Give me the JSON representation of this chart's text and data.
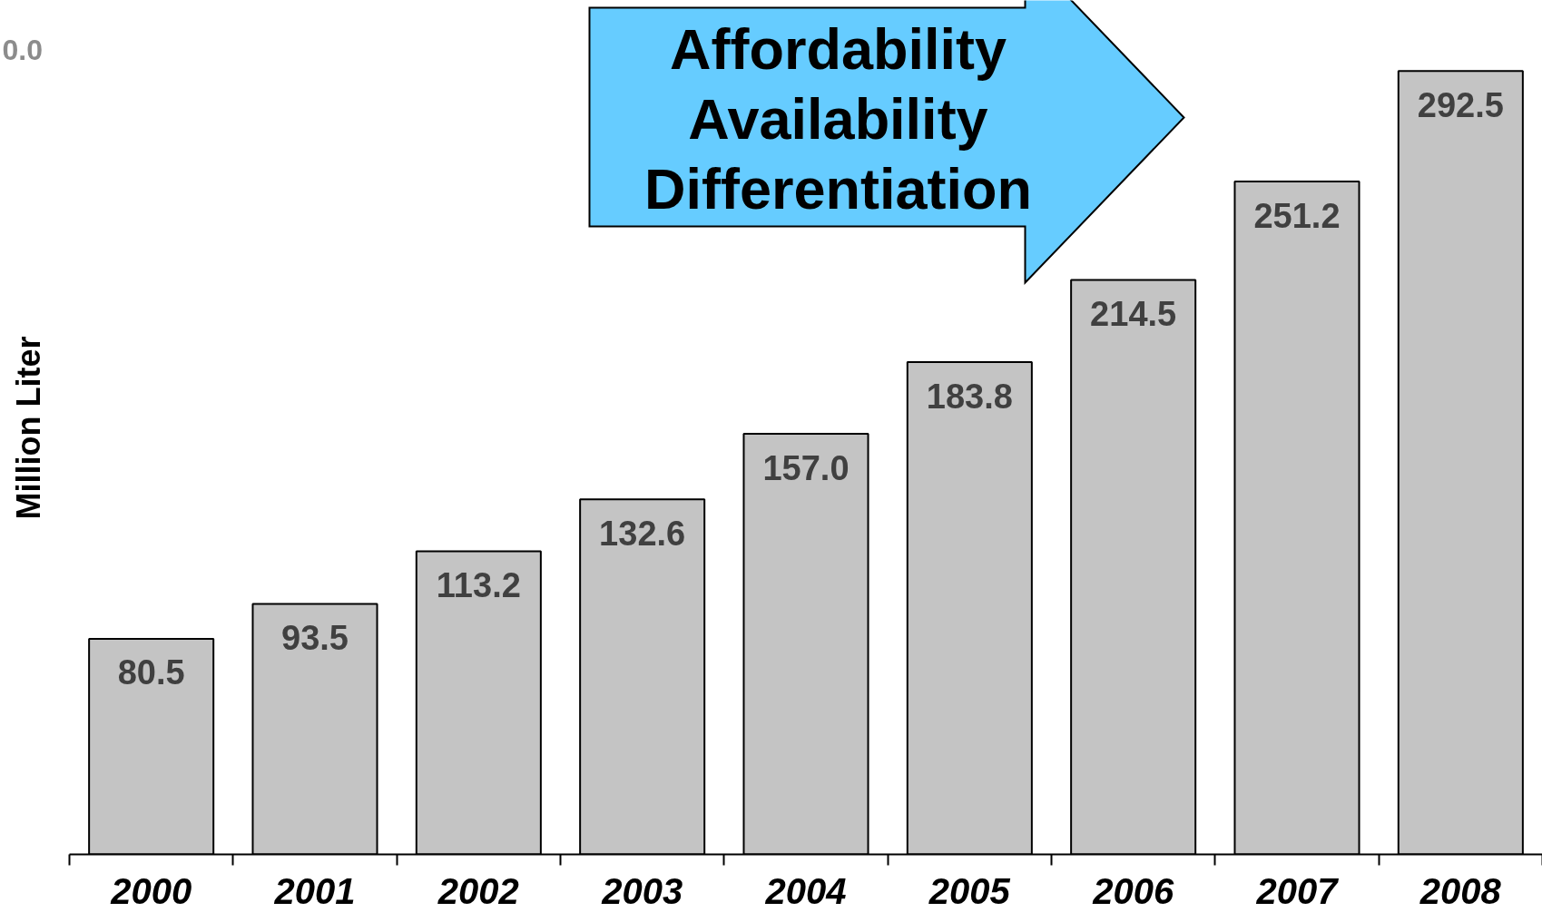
{
  "chart_data": {
    "type": "bar",
    "ylabel": "Million Liter",
    "categories": [
      "2000",
      "2001",
      "2002",
      "2003",
      "2004",
      "2005",
      "2006",
      "2007",
      "2008"
    ],
    "values": [
      80.5,
      93.5,
      113.2,
      132.6,
      157.0,
      183.8,
      214.5,
      251.2,
      292.5
    ],
    "value_labels": [
      "80.5",
      "93.5",
      "113.2",
      "132.6",
      "157.0",
      "183.8",
      "214.5",
      "251.2",
      "292.5"
    ],
    "color": "#c4c4c4",
    "annotations": [
      "0.0",
      "Affordability",
      "Availability",
      "Differentiation"
    ]
  }
}
